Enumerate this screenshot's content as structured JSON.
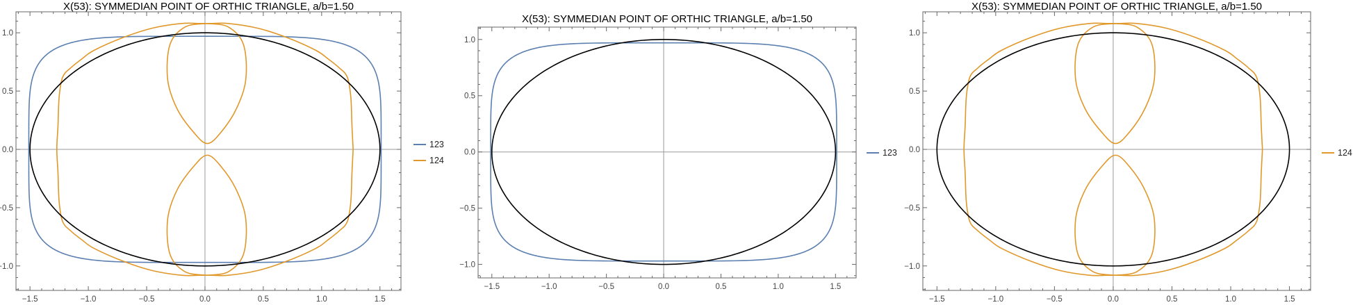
{
  "chart_data": [
    {
      "type": "line",
      "title": "X(53): SYMMEDIAN POINT OF ORTHIC TRIANGLE, a/b=1.50",
      "xlim": [
        -1.62,
        1.68
      ],
      "ylim": [
        -1.21,
        1.18
      ],
      "xticks": [
        "−1.5",
        "−1.0",
        "−0.5",
        "0.0",
        "0.5",
        "1.0",
        "1.5"
      ],
      "yticks": [
        "−1.0",
        "−0.5",
        "0.0",
        "0.5",
        "1.0"
      ],
      "grid": false,
      "legend_position": "right",
      "ellipse": {
        "a": 1.5,
        "b": 1.0,
        "color": "#000000"
      },
      "series": [
        {
          "name": "123",
          "color": "#5b7fb0",
          "shape": "superellipse",
          "rx": 1.51,
          "ry": 0.97,
          "exponent": 5
        },
        {
          "name": "124",
          "color": "#e0982a",
          "shape": "outer-curve-with-two-inner-loops",
          "outer": [
            [
              1.27,
              0.0
            ],
            [
              1.26,
              0.2
            ],
            [
              1.25,
              0.45
            ],
            [
              1.22,
              0.62
            ],
            [
              1.15,
              0.7
            ],
            [
              1.05,
              0.78
            ],
            [
              0.95,
              0.85
            ],
            [
              0.7,
              0.96
            ],
            [
              0.45,
              1.04
            ],
            [
              0.2,
              1.08
            ],
            [
              0.05,
              1.08
            ],
            [
              -0.05,
              1.08
            ],
            [
              -0.2,
              1.08
            ],
            [
              -0.45,
              1.04
            ],
            [
              -0.7,
              0.96
            ],
            [
              -0.95,
              0.85
            ],
            [
              -1.05,
              0.78
            ],
            [
              -1.15,
              0.7
            ],
            [
              -1.22,
              0.62
            ],
            [
              -1.25,
              0.45
            ],
            [
              -1.26,
              0.2
            ],
            [
              -1.27,
              0.0
            ],
            [
              -1.26,
              -0.2
            ],
            [
              -1.25,
              -0.45
            ],
            [
              -1.22,
              -0.62
            ],
            [
              -1.15,
              -0.7
            ],
            [
              -1.05,
              -0.78
            ],
            [
              -0.95,
              -0.85
            ],
            [
              -0.7,
              -0.96
            ],
            [
              -0.45,
              -1.04
            ],
            [
              -0.2,
              -1.08
            ],
            [
              -0.05,
              -1.08
            ],
            [
              0.05,
              -1.08
            ],
            [
              0.2,
              -1.08
            ],
            [
              0.45,
              -1.04
            ],
            [
              0.7,
              -0.96
            ],
            [
              0.95,
              -0.85
            ],
            [
              1.05,
              -0.78
            ],
            [
              1.15,
              -0.7
            ],
            [
              1.22,
              -0.62
            ],
            [
              1.25,
              -0.45
            ],
            [
              1.26,
              -0.2
            ],
            [
              1.27,
              0.0
            ]
          ],
          "upper_loop": [
            [
              0.02,
              1.08
            ],
            [
              0.2,
              1.05
            ],
            [
              0.33,
              0.9
            ],
            [
              0.35,
              0.6
            ],
            [
              0.27,
              0.35
            ],
            [
              0.14,
              0.15
            ],
            [
              0.02,
              0.05
            ],
            [
              -0.1,
              0.15
            ],
            [
              -0.24,
              0.35
            ],
            [
              -0.32,
              0.6
            ],
            [
              -0.3,
              0.9
            ],
            [
              -0.17,
              1.05
            ],
            [
              0.02,
              1.08
            ]
          ]
        }
      ]
    },
    {
      "type": "line",
      "title": "X(53): SYMMEDIAN POINT OF ORTHIC TRIANGLE, a/b=1.50",
      "xlim": [
        -1.62,
        1.68
      ],
      "ylim": [
        -1.12,
        1.11
      ],
      "xticks": [
        "−1.5",
        "−1.0",
        "−0.5",
        "0.0",
        "0.5",
        "1.0",
        "1.5"
      ],
      "yticks": [
        "−1.0",
        "−0.5",
        "0.0",
        "0.5",
        "1.0"
      ],
      "grid": false,
      "legend_position": "right",
      "ellipse": {
        "a": 1.5,
        "b": 1.0,
        "color": "#000000"
      },
      "series": [
        {
          "name": "123",
          "color": "#5b7fb0",
          "shape": "superellipse",
          "rx": 1.51,
          "ry": 0.97,
          "exponent": 5
        }
      ]
    },
    {
      "type": "line",
      "title": "X(53): SYMMEDIAN POINT OF ORTHIC TRIANGLE, a/b=1.50",
      "xlim": [
        -1.62,
        1.68
      ],
      "ylim": [
        -1.21,
        1.18
      ],
      "xticks": [
        "−1.5",
        "−1.0",
        "−0.5",
        "0.0",
        "0.5",
        "1.0",
        "1.5"
      ],
      "yticks": [
        "−1.0",
        "−0.5",
        "0.0",
        "0.5",
        "1.0"
      ],
      "grid": false,
      "legend_position": "right",
      "ellipse": {
        "a": 1.5,
        "b": 1.0,
        "color": "#000000"
      },
      "series": [
        {
          "name": "124",
          "color": "#e0982a",
          "shape": "outer-curve-with-two-inner-loops",
          "outer": [
            [
              1.27,
              0.0
            ],
            [
              1.26,
              0.2
            ],
            [
              1.25,
              0.45
            ],
            [
              1.22,
              0.62
            ],
            [
              1.15,
              0.7
            ],
            [
              1.05,
              0.78
            ],
            [
              0.95,
              0.85
            ],
            [
              0.7,
              0.96
            ],
            [
              0.45,
              1.04
            ],
            [
              0.2,
              1.08
            ],
            [
              0.05,
              1.08
            ],
            [
              -0.05,
              1.08
            ],
            [
              -0.2,
              1.08
            ],
            [
              -0.45,
              1.04
            ],
            [
              -0.7,
              0.96
            ],
            [
              -0.95,
              0.85
            ],
            [
              -1.05,
              0.78
            ],
            [
              -1.15,
              0.7
            ],
            [
              -1.22,
              0.62
            ],
            [
              -1.25,
              0.45
            ],
            [
              -1.26,
              0.2
            ],
            [
              -1.27,
              0.0
            ],
            [
              -1.26,
              -0.2
            ],
            [
              -1.25,
              -0.45
            ],
            [
              -1.22,
              -0.62
            ],
            [
              -1.15,
              -0.7
            ],
            [
              -1.05,
              -0.78
            ],
            [
              -0.95,
              -0.85
            ],
            [
              -0.7,
              -0.96
            ],
            [
              -0.45,
              -1.04
            ],
            [
              -0.2,
              -1.08
            ],
            [
              -0.05,
              -1.08
            ],
            [
              0.05,
              -1.08
            ],
            [
              0.2,
              -1.08
            ],
            [
              0.45,
              -1.04
            ],
            [
              0.7,
              -0.96
            ],
            [
              0.95,
              -0.85
            ],
            [
              1.05,
              -0.78
            ],
            [
              1.15,
              -0.7
            ],
            [
              1.22,
              -0.62
            ],
            [
              1.25,
              -0.45
            ],
            [
              1.26,
              -0.2
            ],
            [
              1.27,
              0.0
            ]
          ],
          "upper_loop": [
            [
              0.02,
              1.08
            ],
            [
              0.2,
              1.05
            ],
            [
              0.33,
              0.9
            ],
            [
              0.35,
              0.6
            ],
            [
              0.27,
              0.35
            ],
            [
              0.14,
              0.15
            ],
            [
              0.02,
              0.05
            ],
            [
              -0.1,
              0.15
            ],
            [
              -0.24,
              0.35
            ],
            [
              -0.32,
              0.6
            ],
            [
              -0.3,
              0.9
            ],
            [
              -0.17,
              1.05
            ],
            [
              0.02,
              1.08
            ]
          ]
        }
      ]
    }
  ]
}
